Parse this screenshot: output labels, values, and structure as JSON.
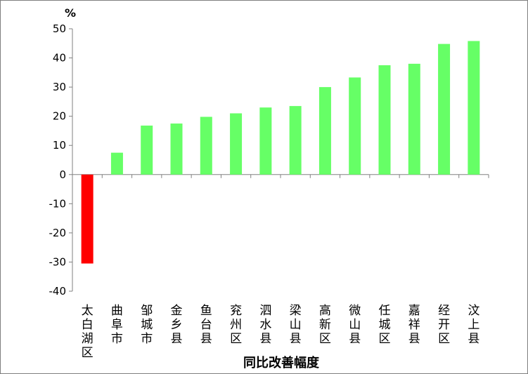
{
  "chart_data": {
    "type": "bar",
    "title": "",
    "ylabel": "%",
    "xlabel": "同比改善幅度",
    "ylim": [
      -40,
      50
    ],
    "yticks": [
      -40,
      -30,
      -20,
      -10,
      0,
      10,
      20,
      30,
      40,
      50
    ],
    "grid": false,
    "categories": [
      "太白湖区",
      "曲阜市",
      "邹城市",
      "金乡县",
      "鱼台县",
      "兖州区",
      "泗水县",
      "梁山县",
      "高新区",
      "微山县",
      "任城区",
      "嘉祥县",
      "经开区",
      "汶上县"
    ],
    "values": [
      -30.5,
      7.5,
      16.8,
      17.5,
      19.8,
      21.0,
      23.0,
      23.5,
      30.0,
      33.3,
      37.5,
      38.0,
      44.8,
      45.8
    ],
    "colors": {
      "positive": "#66ff66",
      "negative": "#ff0000"
    }
  }
}
